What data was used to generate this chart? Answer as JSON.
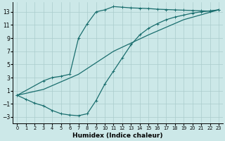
{
  "bg_color": "#cce8e8",
  "grid_color": "#aacccc",
  "line_color": "#1a6e6e",
  "line_width": 0.9,
  "marker": "+",
  "marker_size": 3,
  "marker_ew": 0.7,
  "xlabel": "Humidex (Indice chaleur)",
  "xlabel_fontsize": 6.5,
  "xlim": [
    -0.5,
    23.5
  ],
  "ylim": [
    -4,
    14.5
  ],
  "xticks": [
    0,
    1,
    2,
    3,
    4,
    5,
    6,
    7,
    8,
    9,
    10,
    11,
    12,
    13,
    14,
    15,
    16,
    17,
    18,
    19,
    20,
    21,
    22,
    23
  ],
  "yticks": [
    -3,
    -1,
    1,
    3,
    5,
    7,
    9,
    11,
    13
  ],
  "curve_upper_x": [
    0,
    3,
    4,
    5,
    6,
    7,
    8,
    9,
    10,
    11,
    12,
    13,
    14,
    15,
    16,
    17,
    18,
    19,
    20,
    21,
    22,
    23
  ],
  "curve_upper_y": [
    0.3,
    2.5,
    3.0,
    3.2,
    3.5,
    9.0,
    11.2,
    13.0,
    13.3,
    13.8,
    13.7,
    13.6,
    13.55,
    13.5,
    13.4,
    13.35,
    13.3,
    13.25,
    13.2,
    13.15,
    13.1,
    13.3
  ],
  "curve_lower_x": [
    0,
    1,
    2,
    3,
    4,
    5,
    6,
    7,
    8,
    9,
    10,
    11,
    12,
    13,
    14,
    15,
    16,
    17,
    18,
    19,
    20,
    21,
    22,
    23
  ],
  "curve_lower_y": [
    0.3,
    -0.3,
    -0.9,
    -1.3,
    -2.0,
    -2.5,
    -2.7,
    -2.8,
    -2.5,
    -0.5,
    2.0,
    4.0,
    6.0,
    8.0,
    9.5,
    10.5,
    11.2,
    11.8,
    12.2,
    12.5,
    12.8,
    13.0,
    13.15,
    13.3
  ],
  "curve_diag_x": [
    0,
    3,
    7,
    11,
    15,
    19,
    23
  ],
  "curve_diag_y": [
    0.3,
    1.2,
    3.5,
    7.0,
    9.5,
    11.8,
    13.3
  ]
}
